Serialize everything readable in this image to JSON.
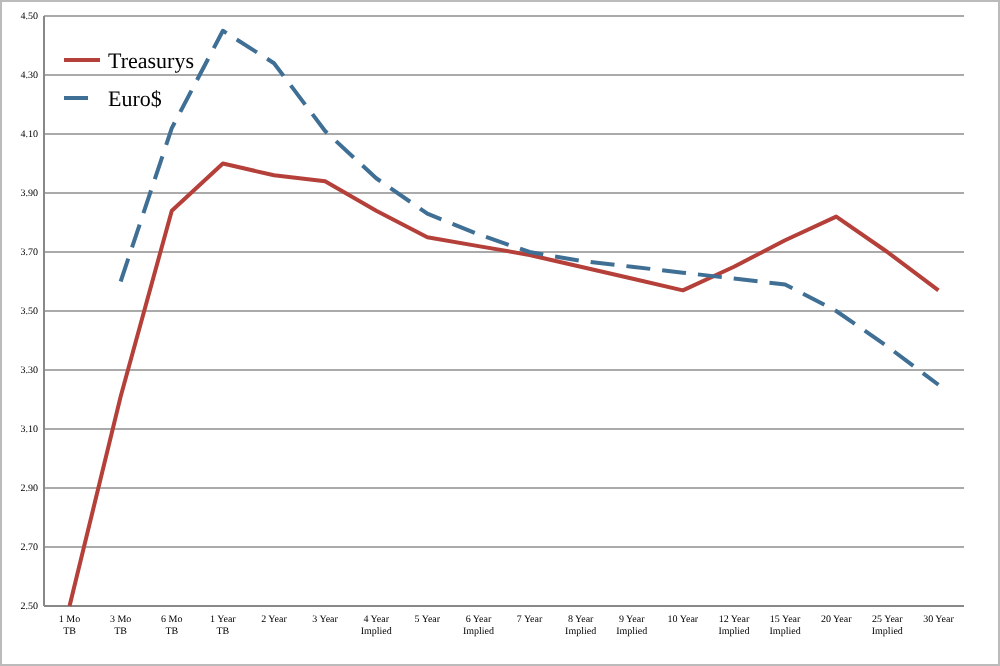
{
  "chart_data": {
    "type": "line",
    "categories": [
      "1 Mo TB",
      "3 Mo TB",
      "6 Mo TB",
      "1 Year TB",
      "2 Year",
      "3 Year",
      "4 Year Implied",
      "5 Year",
      "6 Year Implied",
      "7 Year",
      "8 Year Implied",
      "9 Year Implied",
      "10 Year",
      "12 Year Implied",
      "15 Year Implied",
      "20 Year",
      "25 Year Implied",
      "30 Year"
    ],
    "series": [
      {
        "name": "Treasurys",
        "color": "#b5403a",
        "line_style": "solid",
        "values": [
          2.5,
          3.21,
          3.84,
          4.0,
          3.96,
          3.94,
          3.84,
          3.75,
          3.72,
          3.69,
          3.65,
          3.61,
          3.57,
          3.65,
          3.74,
          3.82,
          3.7,
          3.57
        ]
      },
      {
        "name": "Euro$",
        "color": "#3f6f95",
        "line_style": "dashed",
        "values": [
          null,
          3.6,
          4.12,
          4.45,
          4.34,
          4.11,
          3.95,
          3.83,
          3.76,
          3.7,
          3.67,
          3.65,
          3.63,
          3.61,
          3.59,
          3.5,
          3.38,
          3.25
        ]
      }
    ],
    "ylim": [
      2.5,
      4.5
    ],
    "yticks": [
      {
        "value": 2.5,
        "label": "2.50"
      },
      {
        "value": 2.7,
        "label": "2.70"
      },
      {
        "value": 2.9,
        "label": "2.90"
      },
      {
        "value": 3.1,
        "label": "3.10"
      },
      {
        "value": 3.3,
        "label": "3.30"
      },
      {
        "value": 3.5,
        "label": "3.50"
      },
      {
        "value": 3.7,
        "label": "3.70"
      },
      {
        "value": 3.9,
        "label": "3.90"
      },
      {
        "value": 4.1,
        "label": "4.10"
      },
      {
        "value": 4.3,
        "label": "4.30"
      },
      {
        "value": 4.5,
        "label": "4.50"
      }
    ],
    "grid": "y",
    "legend": "top left"
  }
}
